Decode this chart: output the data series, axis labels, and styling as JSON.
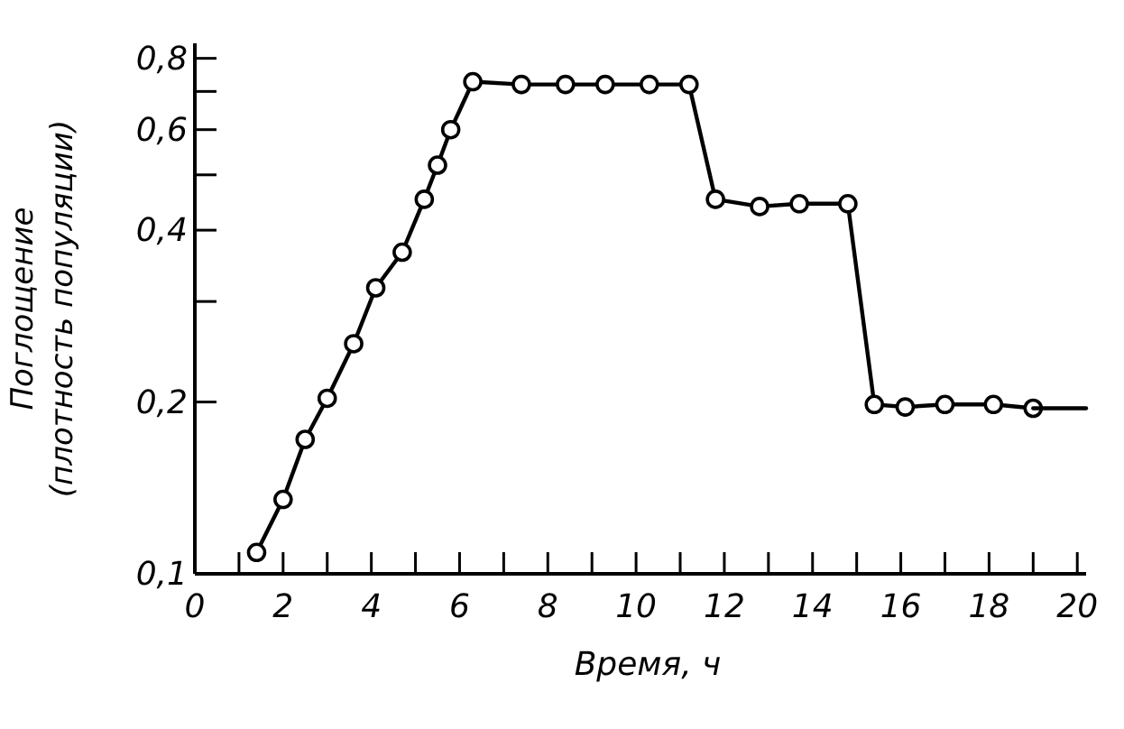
{
  "chart_data": {
    "type": "line",
    "xlabel": "Время, ч",
    "ylabel": "Поглощение\n(плотность популяции)",
    "log": "y",
    "marker": "circle",
    "line_style": "solid",
    "xlim": [
      0,
      20.2
    ],
    "xticks": [
      0,
      {
        "value": 1,
        "label": null
      },
      2,
      {
        "value": 3,
        "label": null
      },
      4,
      {
        "value": 5,
        "label": null
      },
      6,
      {
        "value": 7,
        "label": null
      },
      8,
      {
        "value": 9,
        "label": null
      },
      10,
      {
        "value": 11,
        "label": null
      },
      12,
      {
        "value": 13,
        "label": null
      },
      14,
      {
        "value": 15,
        "label": null
      },
      16,
      {
        "value": 17,
        "label": null
      },
      18,
      {
        "value": 19,
        "label": null
      },
      20
    ],
    "ylim": [
      0.1,
      0.85
    ],
    "yticks": [
      {
        "value": 0.1,
        "label": "0,1"
      },
      {
        "value": 0.2,
        "label": "0,2"
      },
      {
        "value": 0.3,
        "label": null
      },
      {
        "value": 0.4,
        "label": "0,4"
      },
      {
        "value": 0.5,
        "label": null
      },
      {
        "value": 0.6,
        "label": "0,6"
      },
      {
        "value": 0.7,
        "label": null
      },
      {
        "value": 0.8,
        "label": "0,8"
      }
    ],
    "series": [
      {
        "color": "#000000",
        "x": [
          1.4,
          2.0,
          2.5,
          3.0,
          3.6,
          4.1,
          4.7,
          5.2,
          5.5,
          5.8,
          6.3,
          7.4,
          8.4,
          9.3,
          10.3,
          11.2,
          11.8,
          12.8,
          13.7,
          14.8,
          15.4,
          16.1,
          17.0,
          18.1,
          19.0
        ],
        "values": [
          0.109,
          0.135,
          0.172,
          0.203,
          0.253,
          0.317,
          0.366,
          0.453,
          0.52,
          0.6,
          0.728,
          0.72,
          0.72,
          0.72,
          0.72,
          0.72,
          0.453,
          0.44,
          0.445,
          0.445,
          0.198,
          0.196,
          0.198,
          0.198,
          0.195
        ]
      },
      {
        "color": "#000000",
        "marker": "none",
        "x": [
          19.0,
          20.2
        ],
        "values": [
          0.195,
          0.195
        ]
      }
    ]
  }
}
